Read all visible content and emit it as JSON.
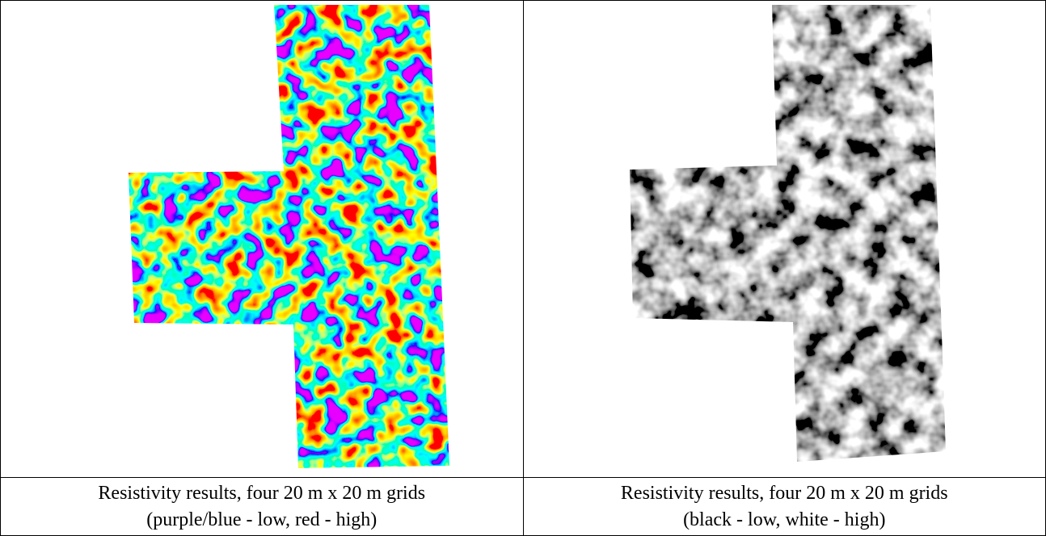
{
  "captions": [
    [
      "Resistivity results, four 20 m x 20 m grids",
      "(purple/blue - low, red - high)"
    ],
    [
      "Resistivity results, four 20 m x 20 m grids",
      "(black - low, white - high)"
    ]
  ]
}
